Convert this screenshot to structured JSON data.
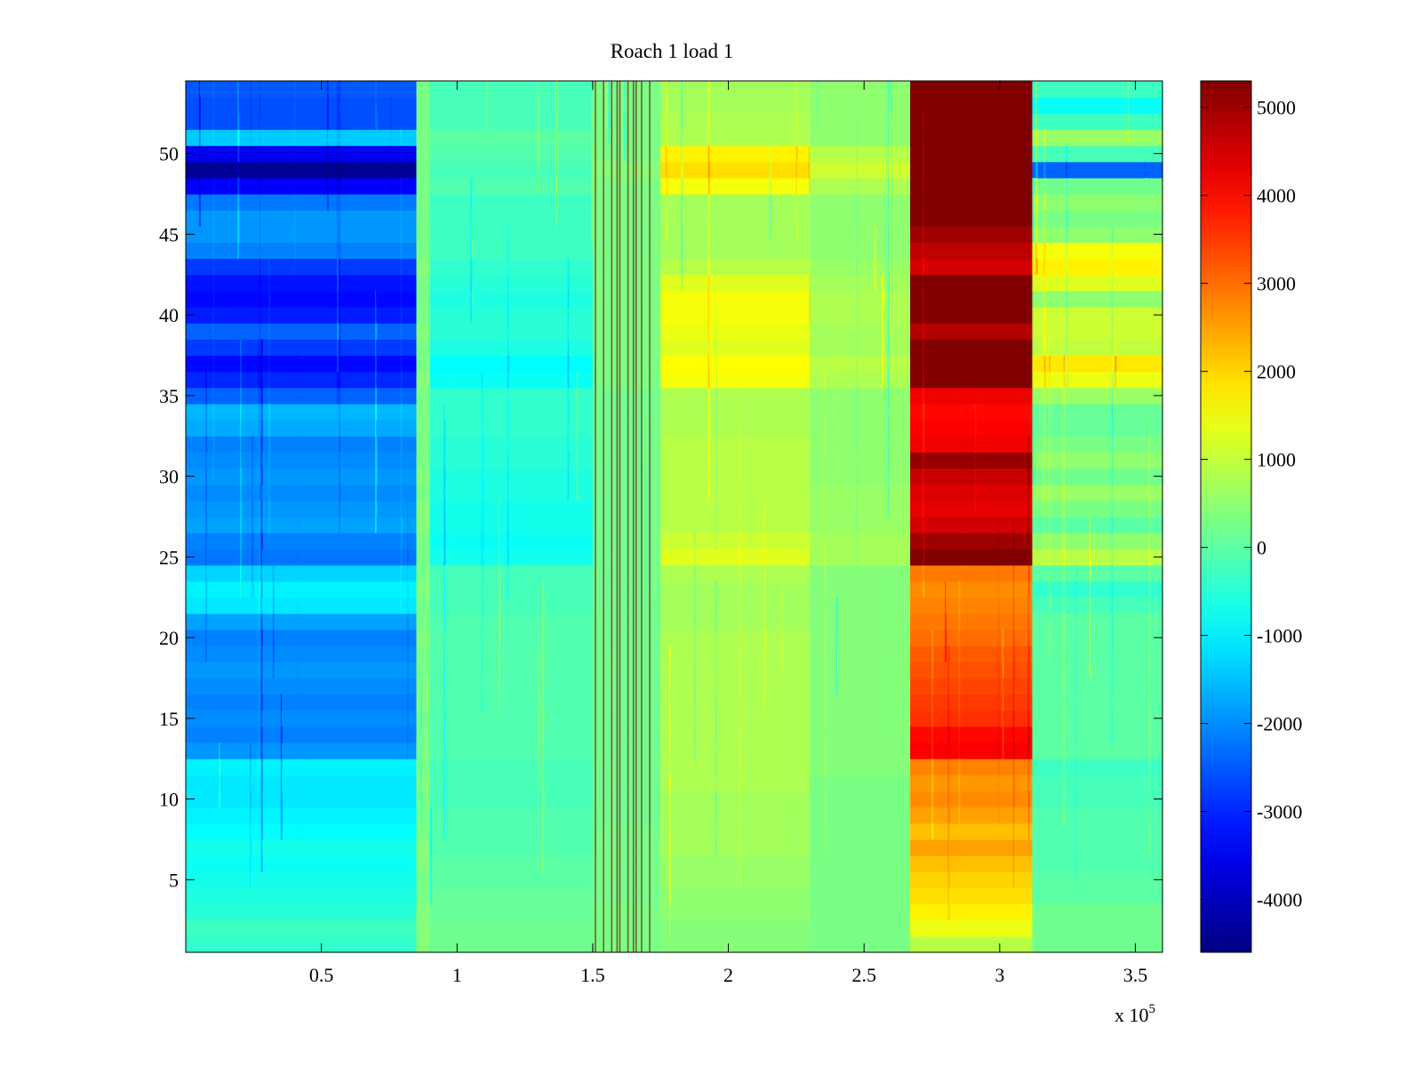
{
  "chart_data": {
    "type": "heatmap",
    "title": "Roach 1 load 1",
    "xlabel": "",
    "ylabel": "",
    "x_multiplier": "x 10",
    "x_multiplier_exp": "5",
    "xlim": [
      0,
      360000
    ],
    "ylim": [
      0.5,
      54.5
    ],
    "x_ticks": [
      0.5,
      1,
      1.5,
      2,
      2.5,
      3,
      3.5
    ],
    "x_tick_labels": [
      "0.5",
      "1",
      "1.5",
      "2",
      "2.5",
      "3",
      "3.5"
    ],
    "y_ticks": [
      5,
      10,
      15,
      20,
      25,
      30,
      35,
      40,
      45,
      50
    ],
    "y_tick_labels": [
      "5",
      "10",
      "15",
      "20",
      "25",
      "30",
      "35",
      "40",
      "45",
      "50"
    ],
    "colormap": "jet",
    "clim": [
      -4600,
      5300
    ],
    "colorbar_ticks": [
      5000,
      4000,
      3000,
      2000,
      1000,
      0,
      -1000,
      -2000,
      -3000,
      -4000
    ],
    "colorbar_tick_labels": [
      "5000",
      "4000",
      "3000",
      "2000",
      "1000",
      "0",
      "-1000",
      "-2000",
      "-3000",
      "-4000"
    ],
    "x_segments": [
      {
        "x0": 0,
        "x1": 85000,
        "profile": "A"
      },
      {
        "x0": 85000,
        "x1": 90000,
        "profile": "T1"
      },
      {
        "x0": 90000,
        "x1": 150000,
        "profile": "B"
      },
      {
        "x0": 150000,
        "x1": 175000,
        "profile": "C"
      },
      {
        "x0": 175000,
        "x1": 230000,
        "profile": "D"
      },
      {
        "x0": 230000,
        "x1": 267000,
        "profile": "E"
      },
      {
        "x0": 267000,
        "x1": 312000,
        "profile": "F"
      },
      {
        "x0": 312000,
        "x1": 360000,
        "profile": "G"
      }
    ],
    "row_values": {
      "A": [
        -400,
        -300,
        -500,
        -600,
        -700,
        -800,
        -700,
        -900,
        -1000,
        -1100,
        -1100,
        -1000,
        -1900,
        -2100,
        -2000,
        -2100,
        -2000,
        -1900,
        -2000,
        -2100,
        -1800,
        -1100,
        -1000,
        -1300,
        -2200,
        -2100,
        -1800,
        -1900,
        -2000,
        -1900,
        -2000,
        -2100,
        -1700,
        -1600,
        -2400,
        -3000,
        -3300,
        -2800,
        -2400,
        -3100,
        -3300,
        -3200,
        -2800,
        -2100,
        -1900,
        -1900,
        -2200,
        -3400,
        -4400,
        -3500,
        -1400,
        -2600,
        -2600,
        -2500
      ],
      "T1": [
        400,
        400,
        400,
        300,
        300,
        400,
        400,
        300,
        300,
        300,
        400,
        300,
        300,
        300,
        300,
        400,
        400,
        300,
        300,
        400,
        300,
        300,
        400,
        300,
        300,
        300,
        400,
        400,
        300,
        400,
        300,
        300,
        300,
        300,
        300,
        400,
        300,
        300,
        400,
        300,
        300,
        300,
        400,
        300,
        300,
        300,
        300,
        300,
        300,
        300,
        300,
        300,
        300,
        300
      ],
      "B": [
        200,
        200,
        100,
        100,
        0,
        0,
        -100,
        -100,
        -100,
        -200,
        -200,
        -200,
        -100,
        -100,
        -100,
        -100,
        -100,
        -100,
        -100,
        -100,
        -100,
        -200,
        -200,
        -200,
        -700,
        -800,
        -700,
        -700,
        -600,
        -600,
        -500,
        -500,
        -400,
        -400,
        -400,
        -800,
        -900,
        -600,
        -500,
        -500,
        -600,
        -500,
        -400,
        -300,
        -300,
        -300,
        -300,
        -100,
        -200,
        -100,
        0,
        -200,
        -200,
        -200
      ],
      "C": [
        300,
        300,
        300,
        250,
        250,
        250,
        250,
        250,
        200,
        200,
        200,
        200,
        200,
        200,
        200,
        200,
        200,
        200,
        200,
        200,
        200,
        200,
        200,
        200,
        200,
        200,
        200,
        200,
        200,
        200,
        200,
        200,
        200,
        200,
        200,
        300,
        300,
        300,
        300,
        300,
        300,
        300,
        300,
        300,
        300,
        300,
        300,
        300,
        400,
        300,
        300,
        300,
        300,
        300
      ],
      "D": [
        400,
        400,
        500,
        500,
        600,
        600,
        700,
        700,
        700,
        700,
        800,
        800,
        800,
        800,
        800,
        800,
        800,
        800,
        800,
        800,
        700,
        700,
        700,
        800,
        1300,
        1100,
        900,
        900,
        900,
        900,
        900,
        900,
        800,
        800,
        800,
        1500,
        1600,
        1300,
        1400,
        1500,
        1500,
        1300,
        900,
        700,
        700,
        700,
        700,
        1500,
        1900,
        1700,
        800,
        800,
        700,
        700
      ],
      "E": [
        300,
        300,
        300,
        300,
        300,
        300,
        300,
        300,
        300,
        300,
        300,
        400,
        400,
        400,
        400,
        400,
        400,
        400,
        400,
        400,
        400,
        400,
        400,
        400,
        700,
        700,
        600,
        600,
        600,
        500,
        500,
        500,
        500,
        500,
        500,
        800,
        900,
        700,
        700,
        800,
        800,
        700,
        600,
        500,
        500,
        500,
        500,
        800,
        1100,
        900,
        500,
        500,
        500,
        500
      ],
      "F": [
        900,
        1400,
        1700,
        1900,
        2000,
        2200,
        2500,
        2200,
        2500,
        2700,
        2600,
        2800,
        4100,
        4000,
        3600,
        3500,
        3400,
        3300,
        3200,
        3000,
        2900,
        2800,
        2700,
        2900,
        5300,
        5000,
        4500,
        4300,
        4400,
        4600,
        5100,
        4200,
        4100,
        4000,
        4200,
        5300,
        5300,
        5300,
        4800,
        5300,
        5300,
        5300,
        4500,
        4700,
        5000,
        5300,
        5300,
        5300,
        5300,
        5300,
        5300,
        5300,
        5300,
        5300
      ],
      "G": [
        200,
        200,
        200,
        0,
        0,
        -100,
        -100,
        -100,
        -100,
        -200,
        -200,
        -300,
        0,
        0,
        0,
        0,
        0,
        0,
        0,
        0,
        0,
        -200,
        -400,
        0,
        900,
        500,
        0,
        300,
        600,
        200,
        500,
        300,
        100,
        100,
        600,
        1400,
        1800,
        1000,
        1100,
        1100,
        500,
        1300,
        1700,
        1500,
        500,
        300,
        500,
        200,
        -2400,
        -200,
        600,
        -300,
        -800,
        -300
      ]
    },
    "vertical_streaks_x": [
      151000,
      154000,
      157000,
      159000,
      160000,
      163000,
      165000,
      166000,
      168000,
      171000
    ]
  }
}
